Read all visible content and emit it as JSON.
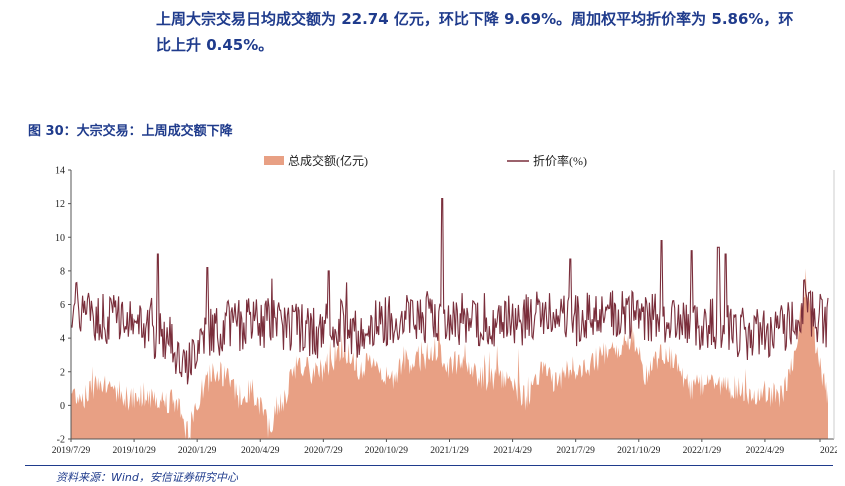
{
  "paragraph": {
    "line1": "上周大宗交易日均成交额为 22.74 亿元，环比下降 9.69%。周加权平均折价率为 5.86%，环",
    "line2": "比上升 0.45%。"
  },
  "figure": {
    "title": "图 30：大宗交易：上周成交额下降",
    "source": "资料来源：Wind，安信证券研究中心"
  },
  "chart_data": {
    "type": "area+line",
    "legend": [
      "总成交额(亿元)",
      "折价率(%)"
    ],
    "legend_position": "top-center",
    "ylim": [
      -2,
      14
    ],
    "yticks": [
      "-2",
      "0",
      "2",
      "4",
      "6",
      "8",
      "10",
      "12",
      "14"
    ],
    "xlabels": [
      "2019/7/29",
      "2019/10/29",
      "2020/1/29",
      "2020/4/29",
      "2020/7/29",
      "2020/10/29",
      "2021/1/29",
      "2021/4/29",
      "2021/7/29",
      "2021/10/29",
      "2022/1/29",
      "2022/4/29",
      "2022/"
    ],
    "grid": false,
    "colors": {
      "volume": "#e8a084",
      "discount": "#7a2e3b",
      "axis": "#555555"
    },
    "anchors": {
      "volume": [
        [
          0,
          0.8
        ],
        [
          0.02,
          0.5
        ],
        [
          0.04,
          1.6
        ],
        [
          0.06,
          0.9
        ],
        [
          0.08,
          0.3
        ],
        [
          0.1,
          0.7
        ],
        [
          0.12,
          0.4
        ],
        [
          0.14,
          0.2
        ],
        [
          0.155,
          -1.7
        ],
        [
          0.17,
          0.6
        ],
        [
          0.19,
          2.2
        ],
        [
          0.21,
          1.4
        ],
        [
          0.225,
          0.3
        ],
        [
          0.24,
          1.0
        ],
        [
          0.26,
          -1.2
        ],
        [
          0.28,
          0.2
        ],
        [
          0.3,
          2.6
        ],
        [
          0.32,
          1.8
        ],
        [
          0.34,
          2.4
        ],
        [
          0.36,
          3.6
        ],
        [
          0.38,
          1.8
        ],
        [
          0.4,
          2.8
        ],
        [
          0.42,
          1.3
        ],
        [
          0.44,
          2.8
        ],
        [
          0.46,
          2.4
        ],
        [
          0.48,
          3.4
        ],
        [
          0.5,
          2.2
        ],
        [
          0.52,
          3.0
        ],
        [
          0.54,
          1.6
        ],
        [
          0.56,
          1.7
        ],
        [
          0.58,
          1.5
        ],
        [
          0.6,
          0.4
        ],
        [
          0.62,
          2.0
        ],
        [
          0.64,
          1.4
        ],
        [
          0.66,
          2.2
        ],
        [
          0.68,
          2.0
        ],
        [
          0.7,
          3.0
        ],
        [
          0.72,
          3.2
        ],
        [
          0.74,
          4.2
        ],
        [
          0.76,
          1.7
        ],
        [
          0.78,
          3.3
        ],
        [
          0.8,
          2.6
        ],
        [
          0.82,
          0.8
        ],
        [
          0.84,
          1.6
        ],
        [
          0.86,
          1.0
        ],
        [
          0.88,
          1.1
        ],
        [
          0.9,
          0.4
        ],
        [
          0.92,
          0.7
        ],
        [
          0.94,
          0.6
        ],
        [
          0.955,
          3.0
        ],
        [
          0.97,
          7.4
        ],
        [
          0.985,
          3.0
        ],
        [
          1.0,
          0.6
        ]
      ],
      "discount": [
        [
          0,
          6.0
        ],
        [
          0.03,
          5.4
        ],
        [
          0.06,
          5.0
        ],
        [
          0.09,
          4.6
        ],
        [
          0.12,
          4.2
        ],
        [
          0.14,
          3.4
        ],
        [
          0.155,
          2.2
        ],
        [
          0.17,
          4.2
        ],
        [
          0.2,
          4.6
        ],
        [
          0.23,
          4.8
        ],
        [
          0.26,
          5.0
        ],
        [
          0.29,
          4.8
        ],
        [
          0.32,
          4.2
        ],
        [
          0.35,
          5.0
        ],
        [
          0.38,
          4.4
        ],
        [
          0.41,
          5.0
        ],
        [
          0.44,
          5.4
        ],
        [
          0.47,
          5.2
        ],
        [
          0.5,
          5.0
        ],
        [
          0.53,
          5.2
        ],
        [
          0.56,
          5.0
        ],
        [
          0.59,
          5.0
        ],
        [
          0.62,
          5.2
        ],
        [
          0.65,
          5.0
        ],
        [
          0.68,
          5.2
        ],
        [
          0.71,
          5.6
        ],
        [
          0.74,
          5.2
        ],
        [
          0.77,
          5.4
        ],
        [
          0.8,
          5.0
        ],
        [
          0.83,
          4.6
        ],
        [
          0.86,
          5.0
        ],
        [
          0.89,
          4.2
        ],
        [
          0.92,
          4.4
        ],
        [
          0.95,
          4.6
        ],
        [
          0.97,
          6.0
        ],
        [
          1.0,
          4.8
        ]
      ],
      "discount_spikes": [
        [
          0.115,
          9.0
        ],
        [
          0.18,
          8.2
        ],
        [
          0.34,
          8.0
        ],
        [
          0.49,
          12.3
        ],
        [
          0.66,
          8.7
        ],
        [
          0.78,
          9.8
        ],
        [
          0.82,
          9.2
        ],
        [
          0.855,
          9.4
        ],
        [
          0.865,
          9.0
        ],
        [
          0.975,
          6.7
        ]
      ]
    }
  }
}
